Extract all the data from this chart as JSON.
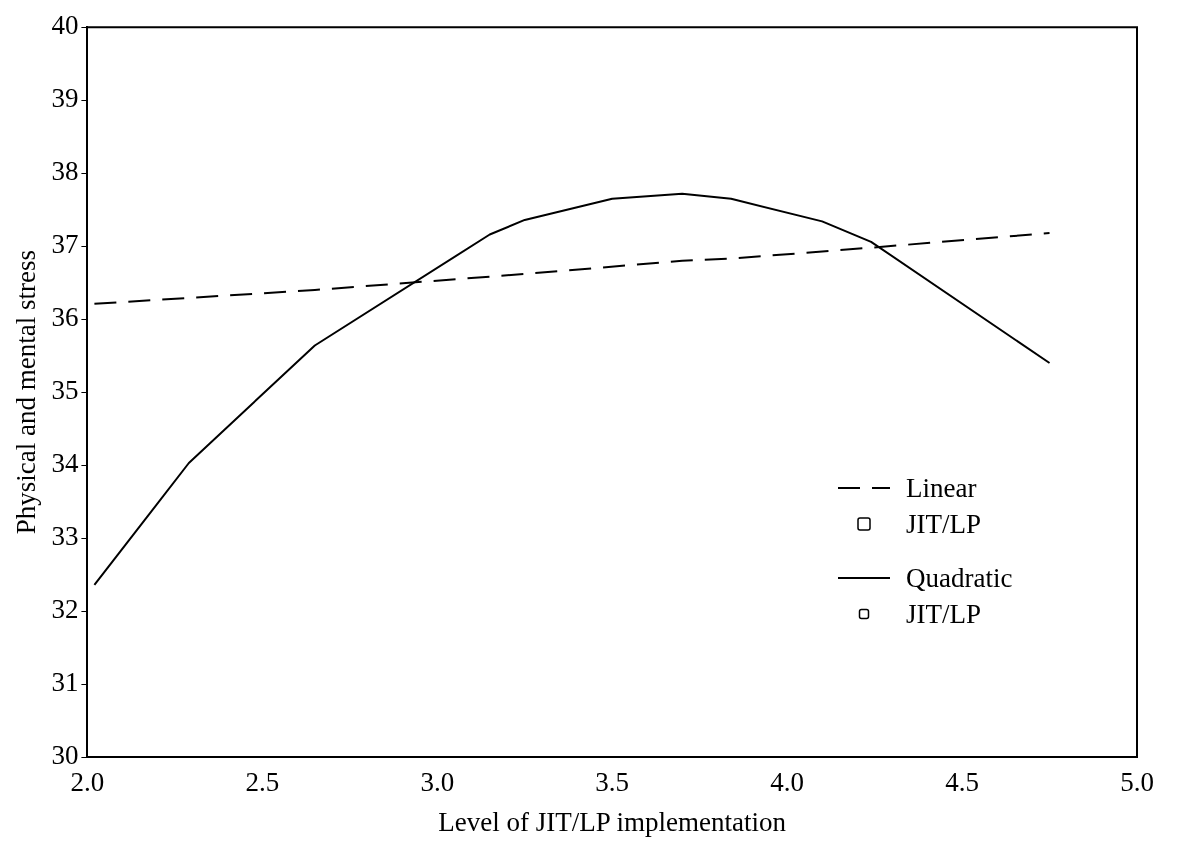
{
  "chart_data": {
    "type": "line",
    "xlabel": "Level of JIT/LP implementation",
    "ylabel": "Physical and mental stress",
    "xlim": [
      2.0,
      5.0
    ],
    "xticks": [
      {
        "value": 2,
        "label": "2.0"
      },
      {
        "value": 2.5,
        "label": "2.5"
      },
      {
        "value": 3,
        "label": "3.0"
      },
      {
        "value": 3.5,
        "label": "3.5"
      },
      {
        "value": 4,
        "label": "4.0"
      },
      {
        "value": 4.5,
        "label": "4.5"
      },
      {
        "value": 5,
        "label": "5.0"
      }
    ],
    "ylim": [
      30,
      40
    ],
    "yticks": [
      30,
      31,
      32,
      33,
      34,
      35,
      36,
      37,
      38,
      39,
      40
    ],
    "grid": false,
    "legend": "bottom right",
    "series": [
      {
        "name": "Linear",
        "type": "line",
        "line_style": "dashed",
        "marker": "none",
        "color": "#000000",
        "x": [
          2.02,
          2.65,
          3.25,
          3.7,
          3.84,
          4.24,
          4.75
        ],
        "values": [
          36.21,
          36.4,
          36.62,
          36.8,
          36.83,
          36.98,
          37.18
        ]
      },
      {
        "name": "JIT/LP",
        "type": "scatter",
        "marker": "square",
        "color": "#000000"
      },
      {
        "name": "Quadratic",
        "type": "line",
        "line_style": "solid",
        "marker": "none",
        "color": "#000000",
        "x": [
          2.02,
          2.29,
          2.65,
          3.15,
          3.25,
          3.5,
          3.7,
          3.84,
          4.1,
          4.24,
          4.75
        ],
        "values": [
          32.36,
          34.03,
          35.64,
          37.16,
          37.36,
          37.65,
          37.72,
          37.65,
          37.34,
          37.06,
          35.4
        ]
      },
      {
        "name": "JIT/LP",
        "type": "scatter",
        "marker": "square",
        "color": "#000000"
      }
    ]
  }
}
